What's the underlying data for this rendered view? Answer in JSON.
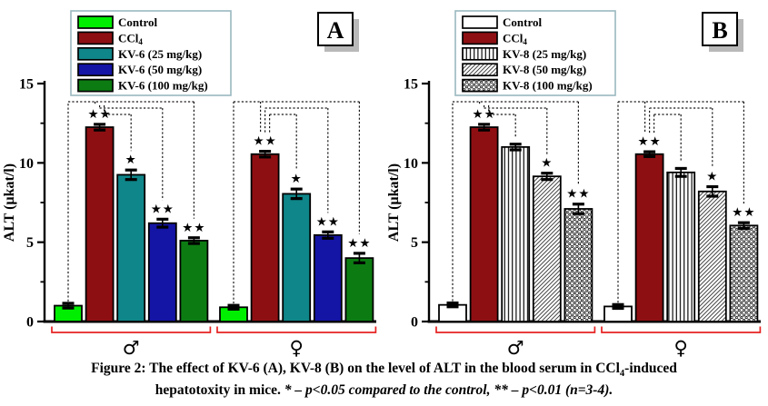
{
  "figure": {
    "caption": {
      "line1": "Figure 2: The effect of KV-6 (A), KV-8 (B) on the level of ALT in the blood serum in CCl4-induced",
      "line2_prefix": "hepatotoxity in mice. ",
      "line2_stats": "* – p<0.05 compared to the control, ** – p<0.01 (n=3-4)."
    }
  },
  "colors": {
    "axis": "#000000",
    "dashed_bracket": "#1a1a1a",
    "group_bracket_red": "#e62222",
    "legend_border": "#9ab7c0",
    "panel_label_shadow": "#b9b9b9",
    "bar_border": "#000000"
  },
  "chart_data": [
    {
      "type": "bar",
      "panel_label": "A",
      "ylabel": "ALT (µkat/l)",
      "ylim": [
        0,
        15
      ],
      "yticks": [
        0,
        5,
        10,
        15
      ],
      "yticks_minor": [
        2.5,
        7.5,
        12.5
      ],
      "grid": false,
      "legend_position": "top-left",
      "categories": [
        "male",
        "female"
      ],
      "category_symbols": [
        "♂",
        "♀"
      ],
      "series": [
        {
          "name": "Control",
          "fill": "#00ef00",
          "pattern": "solid",
          "values": [
            1.0,
            0.9
          ],
          "errors": [
            0.15,
            0.12
          ],
          "sig": [
            "",
            ""
          ]
        },
        {
          "name": "CCl4",
          "fill": "#8e0f12",
          "pattern": "solid",
          "values": [
            12.25,
            10.55
          ],
          "errors": [
            0.18,
            0.18
          ],
          "sig": [
            "**",
            "**"
          ]
        },
        {
          "name": "KV-6 (25 mg/kg)",
          "fill": "#0f8689",
          "pattern": "solid",
          "values": [
            9.25,
            8.05
          ],
          "errors": [
            0.3,
            0.3
          ],
          "sig": [
            "*",
            "*"
          ]
        },
        {
          "name": "KV-6 (50 mg/kg)",
          "fill": "#1414a5",
          "pattern": "solid",
          "values": [
            6.2,
            5.45
          ],
          "errors": [
            0.25,
            0.2
          ],
          "sig": [
            "**",
            "**"
          ]
        },
        {
          "name": "KV-6 (100 mg/kg)",
          "fill": "#0c7c12",
          "pattern": "solid",
          "values": [
            5.1,
            4.0
          ],
          "errors": [
            0.18,
            0.3
          ],
          "sig": [
            "**",
            "**"
          ]
        }
      ]
    },
    {
      "type": "bar",
      "panel_label": "B",
      "ylabel": "ALT (µkat/l)",
      "ylim": [
        0,
        15
      ],
      "yticks": [
        0,
        5,
        10,
        15
      ],
      "yticks_minor": [
        2.5,
        7.5,
        12.5
      ],
      "grid": false,
      "legend_position": "top-left",
      "categories": [
        "male",
        "female"
      ],
      "category_symbols": [
        "♂",
        "♀"
      ],
      "series": [
        {
          "name": "Control",
          "fill": "#ffffff",
          "pattern": "solid",
          "values": [
            1.05,
            0.95
          ],
          "errors": [
            0.12,
            0.12
          ],
          "sig": [
            "",
            ""
          ]
        },
        {
          "name": "CCl4",
          "fill": "#8e0f12",
          "pattern": "solid",
          "values": [
            12.25,
            10.55
          ],
          "errors": [
            0.18,
            0.15
          ],
          "sig": [
            "**",
            "**"
          ]
        },
        {
          "name": "KV-8 (25 mg/kg)",
          "fill": "#ffffff",
          "pattern": "vstripe",
          "values": [
            11.0,
            9.4
          ],
          "errors": [
            0.18,
            0.25
          ],
          "sig": [
            "",
            ""
          ]
        },
        {
          "name": "KV-8 (50 mg/kg)",
          "fill": "#ffffff",
          "pattern": "diag",
          "values": [
            9.15,
            8.2
          ],
          "errors": [
            0.2,
            0.3
          ],
          "sig": [
            "*",
            "*"
          ]
        },
        {
          "name": "KV-8 (100 mg/kg)",
          "fill": "#ffffff",
          "pattern": "dots",
          "values": [
            7.1,
            6.05
          ],
          "errors": [
            0.3,
            0.18
          ],
          "sig": [
            "**",
            "**"
          ]
        }
      ]
    }
  ]
}
